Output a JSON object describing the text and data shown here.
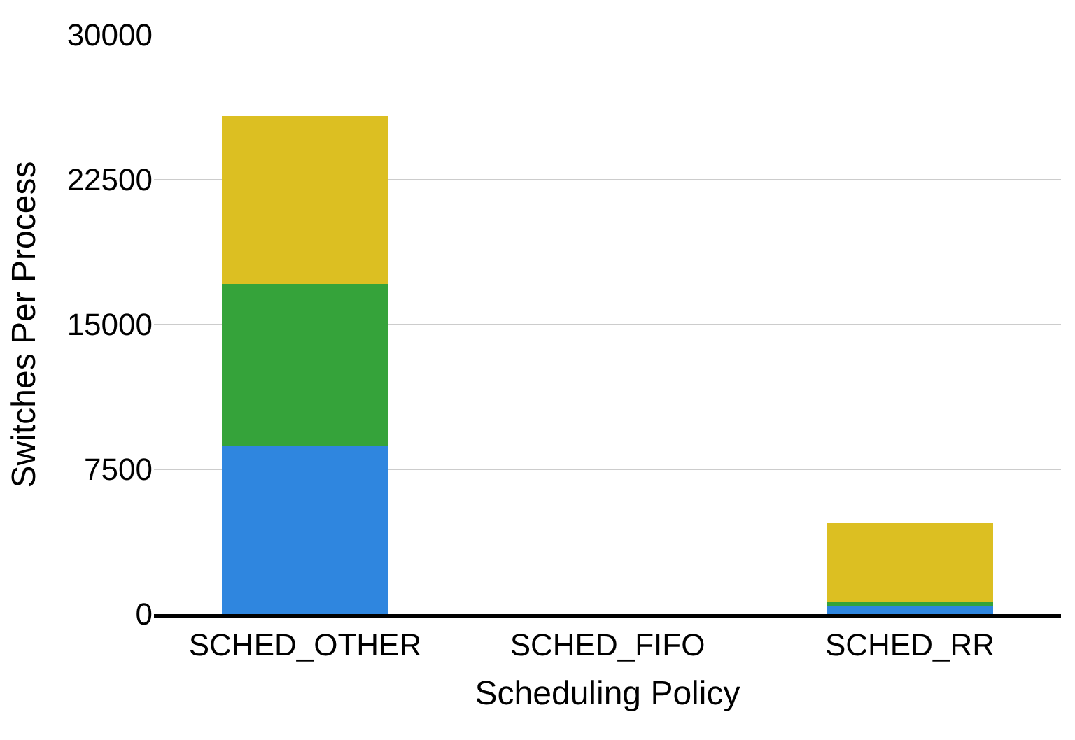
{
  "chart_data": {
    "type": "bar",
    "stacked": true,
    "xlabel": "Scheduling Policy",
    "ylabel": "Switches Per Process",
    "categories": [
      "SCHED_OTHER",
      "SCHED_FIFO",
      "SCHED_RR"
    ],
    "series": [
      {
        "color": "#2f86df",
        "values": [
          8700,
          0,
          450
        ]
      },
      {
        "color": "#35a33a",
        "values": [
          8400,
          0,
          150
        ]
      },
      {
        "color": "#dcbf22",
        "values": [
          8700,
          0,
          4100
        ]
      }
    ],
    "ylim": [
      0,
      30000
    ],
    "yticks": [
      0,
      7500,
      15000,
      22500,
      30000
    ],
    "grid": "y"
  }
}
